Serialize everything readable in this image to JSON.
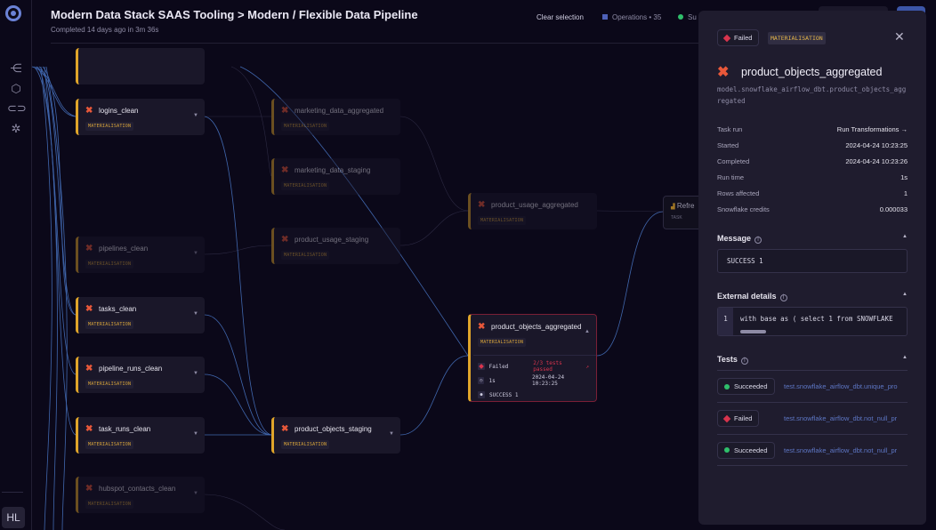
{
  "header": {
    "title": "Modern Data Stack SAAS Tooling > Modern / Flexible Data Pipeline",
    "subtitle": "Completed 14 days ago in 3m 36s",
    "clear_selection": "Clear selection",
    "operations_label": "Operations",
    "operations_count": "35",
    "status_partial": "Su"
  },
  "sidebar": {
    "icons": [
      "lineage-icon",
      "cube-icon",
      "link-icon",
      "integrations-icon"
    ],
    "avatar": "HL"
  },
  "graph": {
    "nodes": [
      {
        "name": "logins_clean",
        "tag": "MATERIALISATION"
      },
      {
        "name": "pipelines_clean",
        "tag": "MATERIALISATION"
      },
      {
        "name": "tasks_clean",
        "tag": "MATERIALISATION"
      },
      {
        "name": "pipeline_runs_clean",
        "tag": "MATERIALISATION"
      },
      {
        "name": "task_runs_clean",
        "tag": "MATERIALISATION"
      },
      {
        "name": "hubspot_contacts_clean",
        "tag": "MATERIALISATION"
      },
      {
        "name": "marketing_data_aggregated",
        "tag": "MATERIALISATION"
      },
      {
        "name": "marketing_data_staging",
        "tag": "MATERIALISATION"
      },
      {
        "name": "product_usage_staging",
        "tag": "MATERIALISATION"
      },
      {
        "name": "product_objects_staging",
        "tag": "MATERIALISATION"
      },
      {
        "name": "product_usage_aggregated",
        "tag": "MATERIALISATION"
      }
    ],
    "selected": {
      "name": "product_objects_aggregated",
      "tag": "MATERIALISATION",
      "status": "Failed",
      "tests": "2/3 tests passed",
      "duration": "1s",
      "timestamp": "2024-04-24 10:23:25",
      "message": "SUCCESS 1"
    },
    "task_node": {
      "name": "Refre",
      "tag": "TASK"
    }
  },
  "panel": {
    "status": "Failed",
    "tag": "MATERIALISATION",
    "title": "product_objects_aggregated",
    "path": "model.snowflake_airflow_dbt.product_objects_aggregated",
    "details": [
      {
        "k": "Task run",
        "v": "Run Transformations →"
      },
      {
        "k": "Started",
        "v": "2024-04-24 10:23:25"
      },
      {
        "k": "Completed",
        "v": "2024-04-24 10:23:26"
      },
      {
        "k": "Run time",
        "v": "1s"
      },
      {
        "k": "Rows affected",
        "v": "1"
      },
      {
        "k": "Snowflake credits",
        "v": "0.000033"
      }
    ],
    "message_title": "Message",
    "message": "SUCCESS 1",
    "external_title": "External details",
    "code_line": "1",
    "code": "with base as ( select 1 from SNOWFLAKE",
    "tests_title": "Tests",
    "tests": [
      {
        "status": "Succeeded",
        "name": "test.snowflake_airflow_dbt.unique_pro"
      },
      {
        "status": "Failed",
        "name": "test.snowflake_airflow_dbt.not_null_pr"
      },
      {
        "status": "Succeeded",
        "name": "test.snowflake_airflow_dbt.not_null_pr"
      }
    ]
  },
  "colors": {
    "background": "#0b0819",
    "panel": "#1f1c2e",
    "accent": "#e0a52a",
    "failed": "#d8344d",
    "succeeded": "#2fbf6b",
    "link": "#6f8ad8",
    "edge": "#4a78c8"
  }
}
